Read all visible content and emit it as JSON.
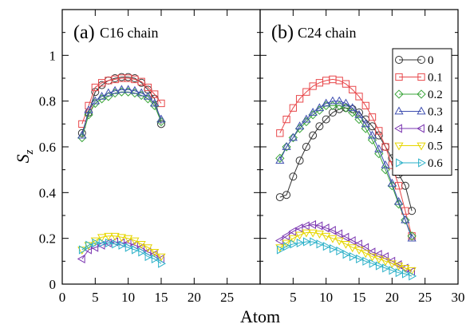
{
  "chart_data": {
    "type": "line",
    "xlabel": "Atom",
    "ylabel_main": "S",
    "ylabel_sub": "z",
    "xlim": [
      0,
      30
    ],
    "ylim": [
      0,
      1.2
    ],
    "xticks": [
      0,
      5,
      10,
      15,
      20,
      25,
      30
    ],
    "xticks_right": [
      5,
      10,
      15,
      20,
      25,
      30
    ],
    "yticks": [
      0,
      0.2,
      0.4,
      0.6,
      0.8,
      1
    ],
    "ytick_labels": [
      "0",
      "0.2",
      "0.4",
      "0.6",
      "0.8",
      "1"
    ],
    "legend_position": "top-right of panel (b)",
    "series_styles": [
      {
        "name": "0",
        "color": "#333333",
        "marker": "circle"
      },
      {
        "name": "0.1",
        "color": "#e8474a",
        "marker": "square"
      },
      {
        "name": "0.2",
        "color": "#3aa53a",
        "marker": "diamond"
      },
      {
        "name": "0.3",
        "color": "#3f4fb0",
        "marker": "triangle-up"
      },
      {
        "name": "0.4",
        "color": "#7a35b0",
        "marker": "triangle-left"
      },
      {
        "name": "0.5",
        "color": "#e6d600",
        "marker": "triangle-down"
      },
      {
        "name": "0.6",
        "color": "#2ab0c8",
        "marker": "triangle-right"
      }
    ],
    "panels": [
      {
        "label": "(a)",
        "sublabel": "C16 chain",
        "series": [
          {
            "name": "0",
            "x": [
              3,
              4,
              5,
              6,
              7,
              8,
              9,
              10,
              11,
              12,
              13,
              14,
              15
            ],
            "y": [
              0.66,
              0.75,
              0.84,
              0.87,
              0.89,
              0.9,
              0.905,
              0.905,
              0.9,
              0.88,
              0.85,
              0.81,
              0.7
            ]
          },
          {
            "name": "0.1",
            "x": [
              3,
              4,
              5,
              6,
              7,
              8,
              9,
              10,
              11,
              12,
              13,
              14,
              15
            ],
            "y": [
              0.7,
              0.78,
              0.86,
              0.88,
              0.89,
              0.895,
              0.9,
              0.9,
              0.895,
              0.885,
              0.86,
              0.83,
              0.79
            ]
          },
          {
            "name": "0.2",
            "x": [
              3,
              4,
              5,
              6,
              7,
              8,
              9,
              10,
              11,
              12,
              13,
              14,
              15
            ],
            "y": [
              0.64,
              0.74,
              0.79,
              0.81,
              0.82,
              0.835,
              0.84,
              0.84,
              0.835,
              0.825,
              0.81,
              0.78,
              0.71
            ]
          },
          {
            "name": "0.3",
            "x": [
              3,
              4,
              5,
              6,
              7,
              8,
              9,
              10,
              11,
              12,
              13,
              14,
              15
            ],
            "y": [
              0.65,
              0.76,
              0.8,
              0.82,
              0.835,
              0.845,
              0.85,
              0.85,
              0.845,
              0.835,
              0.82,
              0.79,
              0.72
            ]
          },
          {
            "name": "0.4",
            "x": [
              3,
              4,
              5,
              6,
              7,
              8,
              9,
              10,
              11,
              12,
              13,
              14,
              15
            ],
            "y": [
              0.11,
              0.15,
              0.16,
              0.17,
              0.18,
              0.185,
              0.18,
              0.18,
              0.17,
              0.16,
              0.14,
              0.13,
              0.11
            ]
          },
          {
            "name": "0.5",
            "x": [
              3,
              4,
              5,
              6,
              7,
              8,
              9,
              10,
              11,
              12,
              13,
              14,
              15
            ],
            "y": [
              0.15,
              0.17,
              0.19,
              0.205,
              0.21,
              0.21,
              0.205,
              0.2,
              0.19,
              0.175,
              0.16,
              0.14,
              0.12
            ]
          },
          {
            "name": "0.6",
            "x": [
              3,
              4,
              5,
              6,
              7,
              8,
              9,
              10,
              11,
              12,
              13,
              14,
              15
            ],
            "y": [
              0.15,
              0.17,
              0.18,
              0.18,
              0.18,
              0.175,
              0.17,
              0.16,
              0.15,
              0.14,
              0.12,
              0.11,
              0.09
            ]
          }
        ]
      },
      {
        "label": "(b)",
        "sublabel": "C24 chain",
        "series": [
          {
            "name": "0",
            "x": [
              3,
              4,
              5,
              6,
              7,
              8,
              9,
              10,
              11,
              12,
              13,
              14,
              15,
              16,
              17,
              18,
              19,
              20,
              21,
              22,
              23
            ],
            "y": [
              0.38,
              0.39,
              0.47,
              0.54,
              0.6,
              0.65,
              0.69,
              0.72,
              0.75,
              0.765,
              0.77,
              0.765,
              0.75,
              0.72,
              0.69,
              0.65,
              0.6,
              0.55,
              0.48,
              0.43,
              0.32
            ]
          },
          {
            "name": "0.1",
            "x": [
              3,
              4,
              5,
              6,
              7,
              8,
              9,
              10,
              11,
              12,
              13,
              14,
              15,
              16,
              17,
              18,
              19,
              20,
              21,
              22,
              23
            ],
            "y": [
              0.66,
              0.72,
              0.77,
              0.81,
              0.84,
              0.865,
              0.88,
              0.89,
              0.895,
              0.89,
              0.875,
              0.85,
              0.82,
              0.78,
              0.73,
              0.67,
              0.6,
              0.52,
              0.43,
              0.32,
              0.21
            ]
          },
          {
            "name": "0.2",
            "x": [
              3,
              4,
              5,
              6,
              7,
              8,
              9,
              10,
              11,
              12,
              13,
              14,
              15,
              16,
              17,
              18,
              19,
              20,
              21,
              22,
              23
            ],
            "y": [
              0.55,
              0.6,
              0.64,
              0.68,
              0.71,
              0.74,
              0.76,
              0.78,
              0.78,
              0.78,
              0.77,
              0.75,
              0.72,
              0.68,
              0.63,
              0.57,
              0.5,
              0.43,
              0.35,
              0.28,
              0.21
            ]
          },
          {
            "name": "0.3",
            "x": [
              3,
              4,
              5,
              6,
              7,
              8,
              9,
              10,
              11,
              12,
              13,
              14,
              15,
              16,
              17,
              18,
              19,
              20,
              21,
              22,
              23
            ],
            "y": [
              0.54,
              0.6,
              0.64,
              0.69,
              0.72,
              0.75,
              0.77,
              0.79,
              0.8,
              0.8,
              0.79,
              0.77,
              0.74,
              0.7,
              0.65,
              0.59,
              0.52,
              0.44,
              0.36,
              0.28,
              0.2
            ]
          },
          {
            "name": "0.4",
            "x": [
              3,
              4,
              5,
              6,
              7,
              8,
              9,
              10,
              11,
              12,
              13,
              14,
              15,
              16,
              17,
              18,
              19,
              20,
              21,
              22,
              23
            ],
            "y": [
              0.19,
              0.21,
              0.23,
              0.245,
              0.255,
              0.26,
              0.255,
              0.245,
              0.235,
              0.22,
              0.205,
              0.19,
              0.175,
              0.16,
              0.14,
              0.13,
              0.12,
              0.1,
              0.085,
              0.07,
              0.055
            ]
          },
          {
            "name": "0.5",
            "x": [
              3,
              4,
              5,
              6,
              7,
              8,
              9,
              10,
              11,
              12,
              13,
              14,
              15,
              16,
              17,
              18,
              19,
              20,
              21,
              22,
              23
            ],
            "y": [
              0.16,
              0.18,
              0.2,
              0.215,
              0.225,
              0.225,
              0.22,
              0.21,
              0.2,
              0.19,
              0.175,
              0.16,
              0.15,
              0.135,
              0.12,
              0.11,
              0.1,
              0.09,
              0.08,
              0.07,
              0.06
            ]
          },
          {
            "name": "0.6",
            "x": [
              3,
              4,
              5,
              6,
              7,
              8,
              9,
              10,
              11,
              12,
              13,
              14,
              15,
              16,
              17,
              18,
              19,
              20,
              21,
              22,
              23
            ],
            "y": [
              0.15,
              0.165,
              0.175,
              0.18,
              0.185,
              0.185,
              0.175,
              0.165,
              0.155,
              0.145,
              0.13,
              0.12,
              0.11,
              0.1,
              0.09,
              0.08,
              0.07,
              0.06,
              0.05,
              0.045,
              0.035
            ]
          }
        ]
      }
    ]
  }
}
